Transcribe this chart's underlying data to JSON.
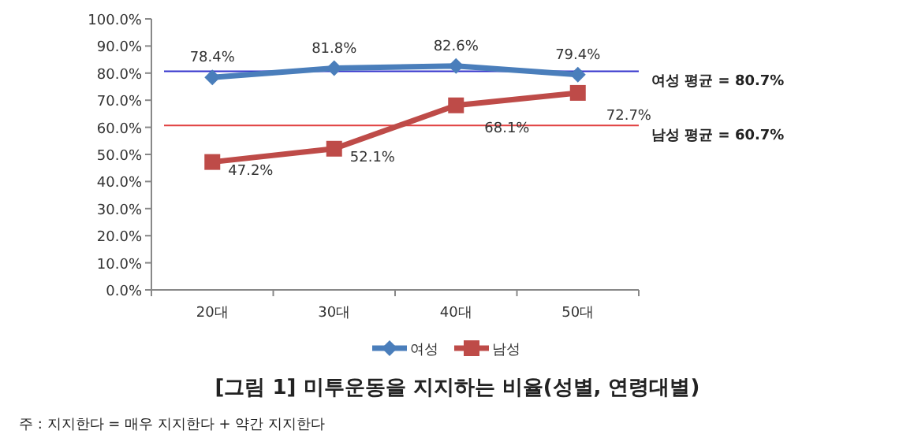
{
  "chart_data": {
    "type": "line",
    "title": "[그림 1] 미투운동을 지지하는 비율(성별, 연령대별)",
    "annotations": [
      "주 : 지지한다 = 매우 지지한다 + 약간 지지한다"
    ],
    "categories": [
      "20대",
      "30대",
      "40대",
      "50대"
    ],
    "series": [
      {
        "name": "여성",
        "color": "#4a7ebb",
        "marker": "diamond",
        "values": [
          78.4,
          81.8,
          82.6,
          79.4
        ],
        "value_labels": [
          "78.4%",
          "81.8%",
          "82.6%",
          "79.4%"
        ]
      },
      {
        "name": "남성",
        "color": "#be4b48",
        "marker": "square",
        "values": [
          47.2,
          52.1,
          68.1,
          72.7
        ],
        "value_labels": [
          "47.2%",
          "52.1%",
          "68.1%",
          "72.7%"
        ]
      }
    ],
    "ylim": [
      0,
      100
    ],
    "yticks": [
      {
        "value": 0,
        "label": "0.0%"
      },
      {
        "value": 10,
        "label": "10.0%"
      },
      {
        "value": 20,
        "label": "20.0%"
      },
      {
        "value": 30,
        "label": "30.0%"
      },
      {
        "value": 40,
        "label": "40.0%"
      },
      {
        "value": 50,
        "label": "50.0%"
      },
      {
        "value": 60,
        "label": "60.0%"
      },
      {
        "value": 70,
        "label": "70.0%"
      },
      {
        "value": 80,
        "label": "80.0%"
      },
      {
        "value": 90,
        "label": "90.0%"
      },
      {
        "value": 100,
        "label": "100.0%"
      }
    ],
    "ref_lines": [
      {
        "axis": "y",
        "value": 80.7,
        "label": "여성 평균 = 80.7%",
        "color": "#3333cc"
      },
      {
        "axis": "y",
        "value": 60.7,
        "label": "남성 평균 = 60.7%",
        "color": "#e04040"
      }
    ],
    "legend": "bottom",
    "grid": false
  }
}
